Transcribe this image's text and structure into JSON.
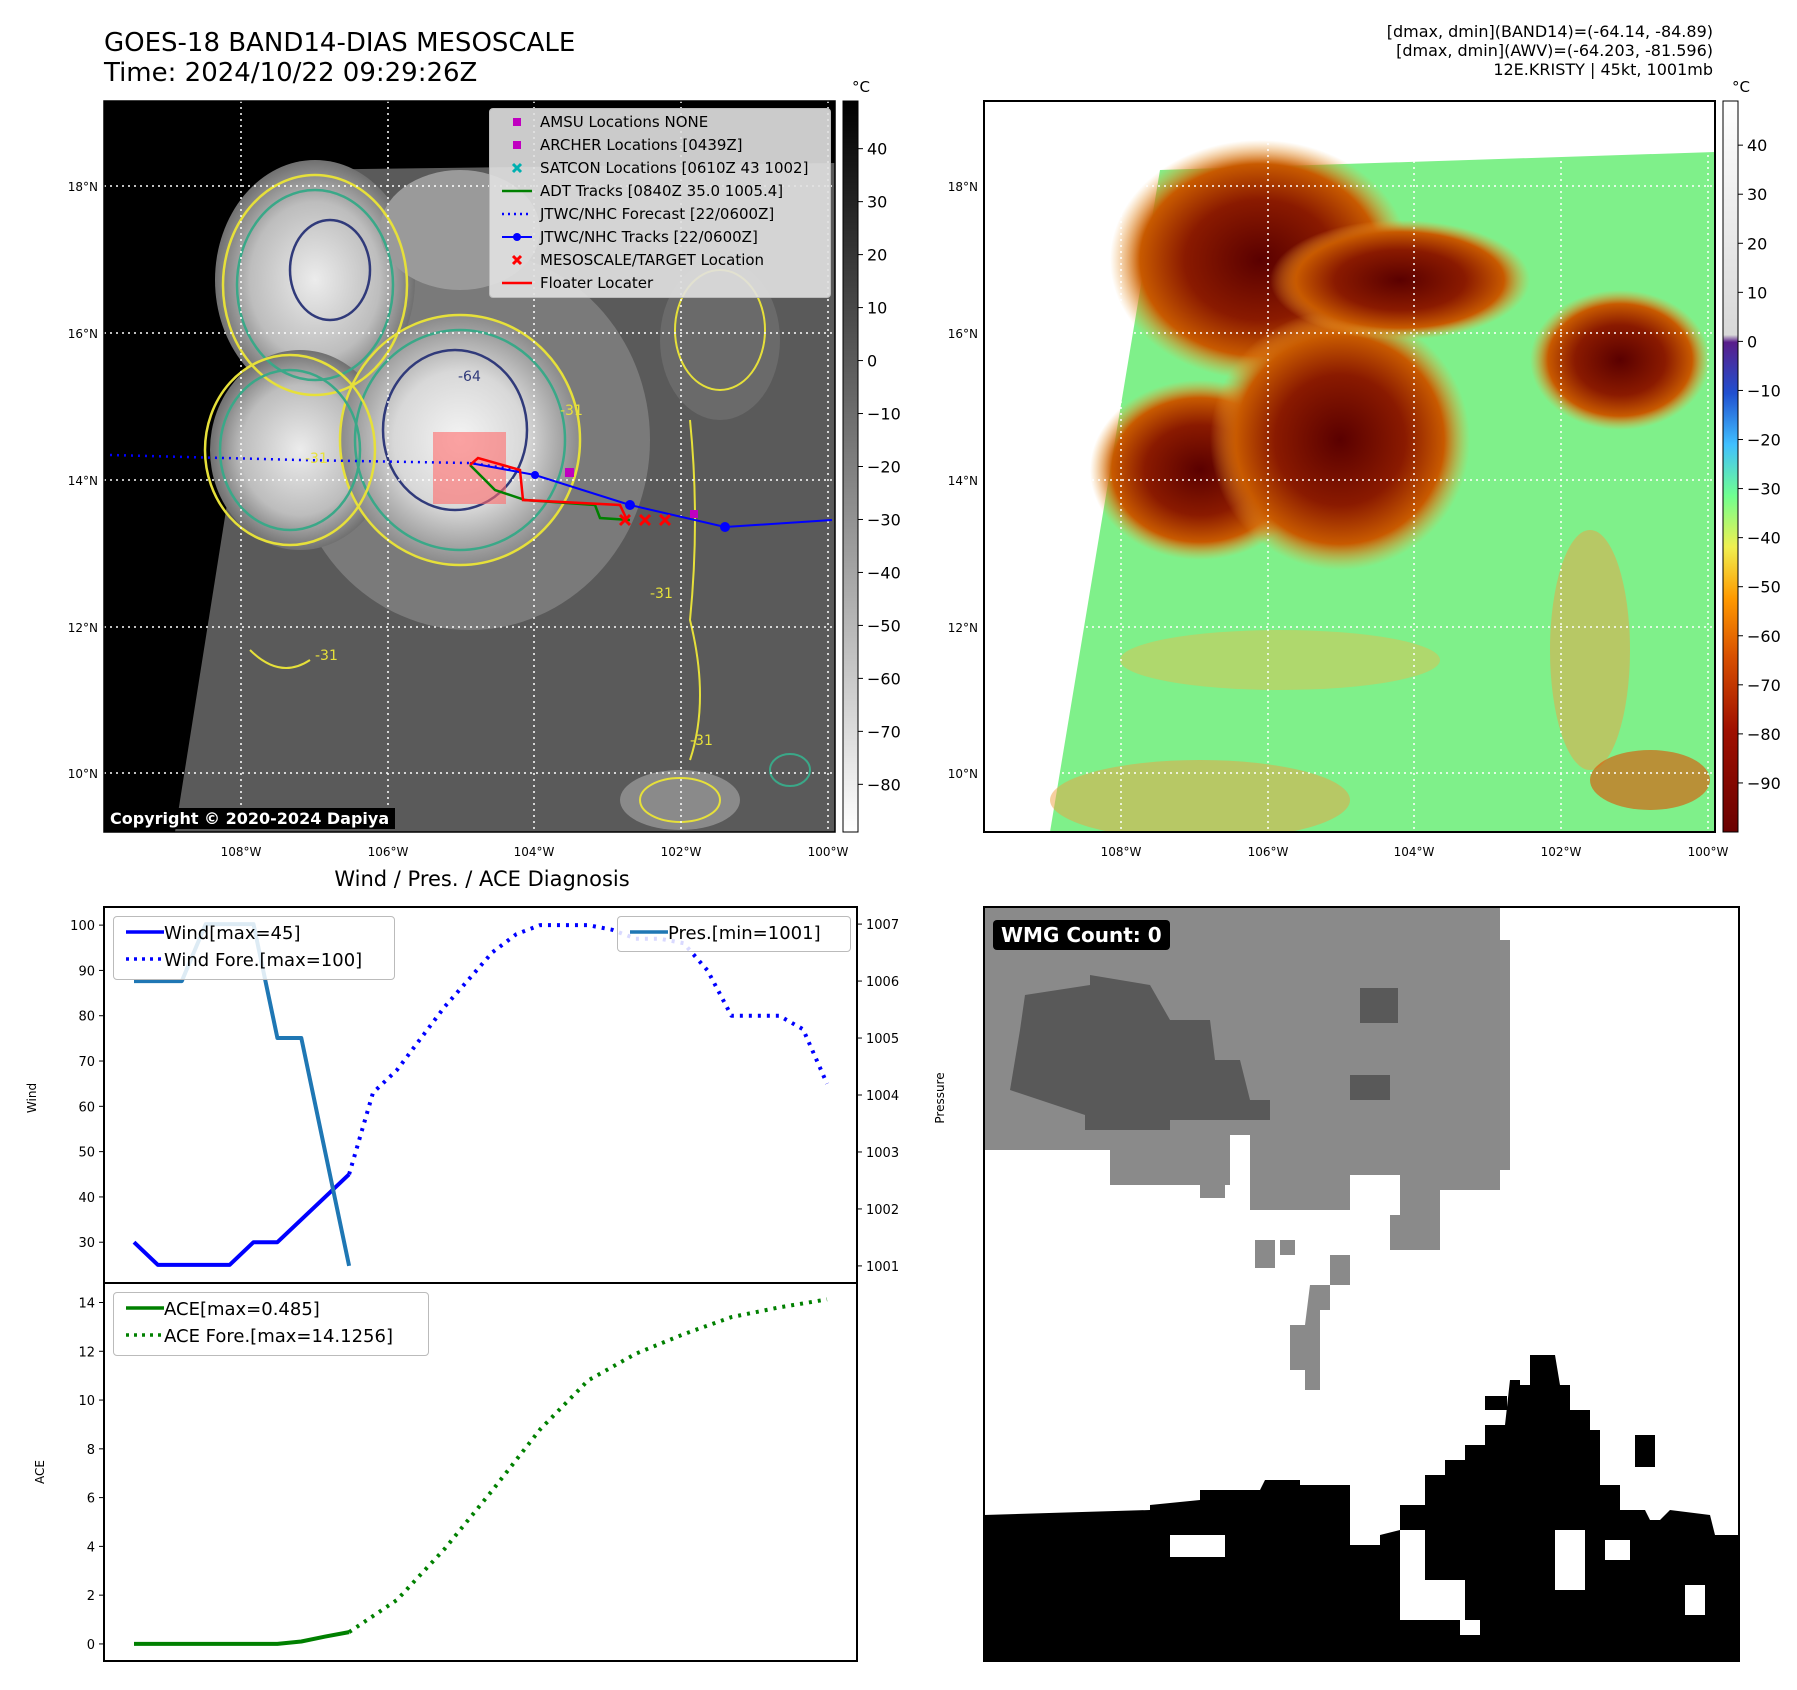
{
  "header": {
    "title_line1": "GOES-18 BAND14-DIAS MESOSCALE",
    "title_line2": "Time: 2024/10/22 09:29:26Z",
    "info_line1": "[dmax, dmin](BAND14)=(-64.14, -84.89)",
    "info_line2": "[dmax, dmin](AWV)=(-64.203, -81.596)",
    "info_line3": "12E.KRISTY | 45kt, 1001mb"
  },
  "copyright": "Copyright © 2020-2024 Dapiya",
  "maps": {
    "lat_labels": [
      "18°N",
      "16°N",
      "14°N",
      "12°N",
      "10°N"
    ],
    "lon_labels": [
      "108°W",
      "106°W",
      "104°W",
      "102°W",
      "100°W"
    ],
    "contour_labels": [
      "-64",
      "-31",
      "-31",
      "-31",
      "-31",
      "-31"
    ],
    "colorbar_unit": "°C",
    "colorbar1_ticks": [
      "40",
      "30",
      "20",
      "10",
      "0",
      "−10",
      "−20",
      "−30",
      "−40",
      "−50",
      "−60",
      "−70",
      "−80"
    ],
    "colorbar2_ticks": [
      "40",
      "30",
      "20",
      "10",
      "0",
      "−10",
      "−20",
      "−30",
      "−40",
      "−50",
      "−60",
      "−70",
      "−80",
      "−90"
    ]
  },
  "legend_map": [
    {
      "label": "AMSU Locations NONE",
      "symbol": "square",
      "color": "#c000c0"
    },
    {
      "label": "ARCHER Locations [0439Z]",
      "symbol": "square",
      "color": "#c000c0"
    },
    {
      "label": "SATCON Locations [0610Z 43 1002]",
      "symbol": "x",
      "color": "#00b0b0"
    },
    {
      "label": "ADT Tracks [0840Z 35.0 1005.4]",
      "symbol": "line",
      "color": "#008000"
    },
    {
      "label": "JTWC/NHC Forecast [22/0600Z]",
      "symbol": "dotted",
      "color": "#0000ff"
    },
    {
      "label": "JTWC/NHC Tracks [22/0600Z]",
      "symbol": "line-dot",
      "color": "#0000ff"
    },
    {
      "label": "MESOSCALE/TARGET Location",
      "symbol": "x",
      "color": "#ff0000"
    },
    {
      "label": "Floater Locater",
      "symbol": "line",
      "color": "#ff0000"
    }
  ],
  "wmg_label": "WMG Count: 0",
  "chart_data": [
    {
      "type": "line",
      "title": "Wind / Pres. / ACE Diagnosis",
      "ylabel": "Wind",
      "ylabel_right": "Pressure",
      "y_ticks": [
        30,
        40,
        50,
        60,
        70,
        80,
        90,
        100
      ],
      "y_right_ticks": [
        1001,
        1002,
        1003,
        1004,
        1005,
        1006,
        1007
      ],
      "ylim": [
        21,
        104
      ],
      "ylim_right": [
        1000.7,
        1007.3
      ],
      "series": [
        {
          "name": "Wind[max=45]",
          "axis": "left",
          "style": "solid",
          "color": "#0000ff",
          "x": [
            0,
            1,
            2,
            3,
            4,
            5,
            6,
            7,
            8,
            9
          ],
          "y": [
            30,
            25,
            25,
            25,
            25,
            30,
            30,
            35,
            40,
            45
          ]
        },
        {
          "name": "Wind Fore.[max=100]",
          "axis": "left",
          "style": "dotted",
          "color": "#0000ff",
          "x": [
            9,
            10,
            11,
            12,
            13,
            14,
            15,
            16,
            17,
            18,
            19,
            20,
            21,
            22,
            23,
            24,
            25,
            26,
            27,
            28,
            29
          ],
          "y": [
            45,
            63,
            68,
            75,
            82,
            88,
            94,
            98,
            100,
            100,
            100,
            99,
            97,
            97,
            96,
            90,
            80,
            80,
            80,
            77,
            65
          ]
        },
        {
          "name": "Pres.[min=1001]",
          "axis": "right",
          "style": "solid",
          "color": "#1f77b4",
          "x": [
            0,
            1,
            2,
            3,
            4,
            5,
            6,
            7,
            8,
            9
          ],
          "y": [
            1006,
            1006,
            1006,
            1007,
            1007,
            1007,
            1005,
            1005,
            1003,
            1001
          ]
        }
      ]
    },
    {
      "type": "line",
      "ylabel": "ACE",
      "y_ticks": [
        0,
        2,
        4,
        6,
        8,
        10,
        12,
        14
      ],
      "ylim": [
        -0.7,
        14.8
      ],
      "series": [
        {
          "name": "ACE[max=0.485]",
          "style": "solid",
          "color": "#008000",
          "x": [
            0,
            2,
            4,
            6,
            7,
            8,
            9
          ],
          "y": [
            0,
            0,
            0,
            0,
            0.1,
            0.3,
            0.485
          ]
        },
        {
          "name": "ACE Fore.[max=14.1256]",
          "style": "dotted",
          "color": "#008000",
          "x": [
            9,
            11,
            13,
            15,
            17,
            19,
            21,
            23,
            25,
            27,
            29
          ],
          "y": [
            0.485,
            1.8,
            3.9,
            6.3,
            8.8,
            10.8,
            11.9,
            12.7,
            13.4,
            13.8,
            14.1256
          ]
        }
      ]
    }
  ]
}
